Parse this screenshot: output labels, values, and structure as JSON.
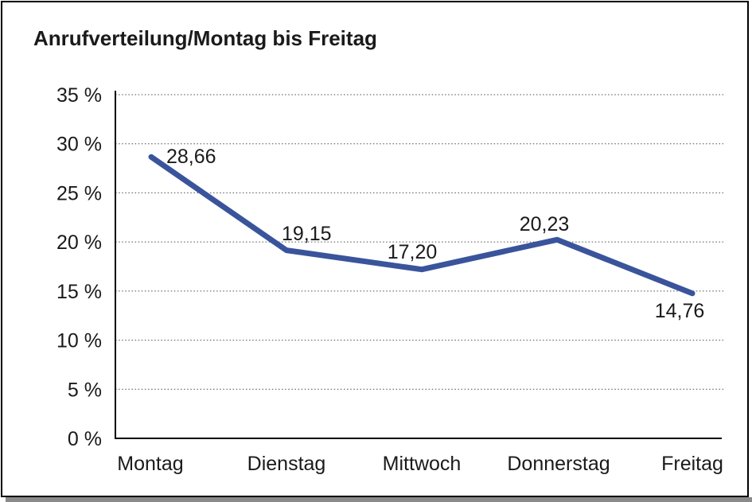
{
  "chart_data": {
    "type": "line",
    "title": "Anrufverteilung/Montag bis Freitag",
    "categories": [
      "Montag",
      "Dienstag",
      "Mittwoch",
      "Donnerstag",
      "Freitag"
    ],
    "series": [
      {
        "name": "Anrufverteilung",
        "values": [
          28.66,
          19.15,
          17.2,
          20.23,
          14.76
        ]
      }
    ],
    "point_labels": [
      "28,66",
      "19,15",
      "17,20",
      "20,23",
      "14,76"
    ],
    "ytick_labels": [
      "35 %",
      "30 %",
      "25 %",
      "20 %",
      "15 %",
      "10 %",
      "5 %",
      "0 %"
    ],
    "ylim": [
      0,
      35
    ],
    "ytick_step": 5,
    "xlabel": "",
    "ylabel": "",
    "grid": "horizontal-dotted",
    "legend_position": "none",
    "colors": {
      "line": "#3A549C",
      "grid": "#4D4D4D",
      "axis": "#000000",
      "text": "#1A1A1A",
      "frame_border": "#000000",
      "frame_shadow": "#8A8A8A",
      "background": "#FFFFFF"
    }
  }
}
